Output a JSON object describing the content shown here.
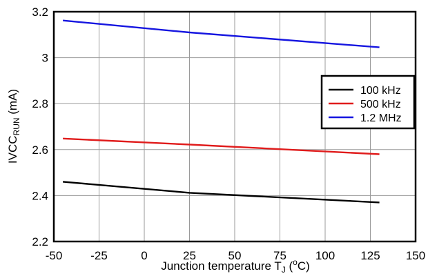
{
  "chart_data": {
    "type": "line",
    "xlabel_main": "Junction temperature T",
    "xlabel_sub": "J",
    "xlabel_open": " (",
    "xlabel_sup": "o",
    "xlabel_unit": "C)",
    "ylabel_main": "IVCC",
    "ylabel_sub": "RUN",
    "ylabel_unit": " (mA)",
    "xlim": [
      -50,
      150
    ],
    "ylim": [
      2.2,
      3.2
    ],
    "xticks": [
      -50,
      -25,
      0,
      25,
      50,
      75,
      100,
      125,
      150
    ],
    "xtick_labels": [
      "-50",
      "-25",
      "0",
      "25",
      "50",
      "75",
      "100",
      "125",
      "150"
    ],
    "yticks": [
      2.2,
      2.4,
      2.6,
      2.8,
      3.0,
      3.2
    ],
    "ytick_labels": [
      "2.2",
      "2.4",
      "2.6",
      "2.8",
      "3",
      "3.2"
    ],
    "grid": true,
    "legend_position": "right",
    "series": [
      {
        "name": "100 kHz",
        "color": "#000000",
        "x": [
          -45,
          25,
          130
        ],
        "y": [
          2.46,
          2.412,
          2.37
        ]
      },
      {
        "name": "500 kHz",
        "color": "#e01b1b",
        "x": [
          -45,
          25,
          130
        ],
        "y": [
          2.648,
          2.622,
          2.58
        ]
      },
      {
        "name": "1.2 MHz",
        "color": "#1515e0",
        "x": [
          -45,
          25,
          130
        ],
        "y": [
          3.162,
          3.11,
          3.045
        ]
      }
    ]
  }
}
